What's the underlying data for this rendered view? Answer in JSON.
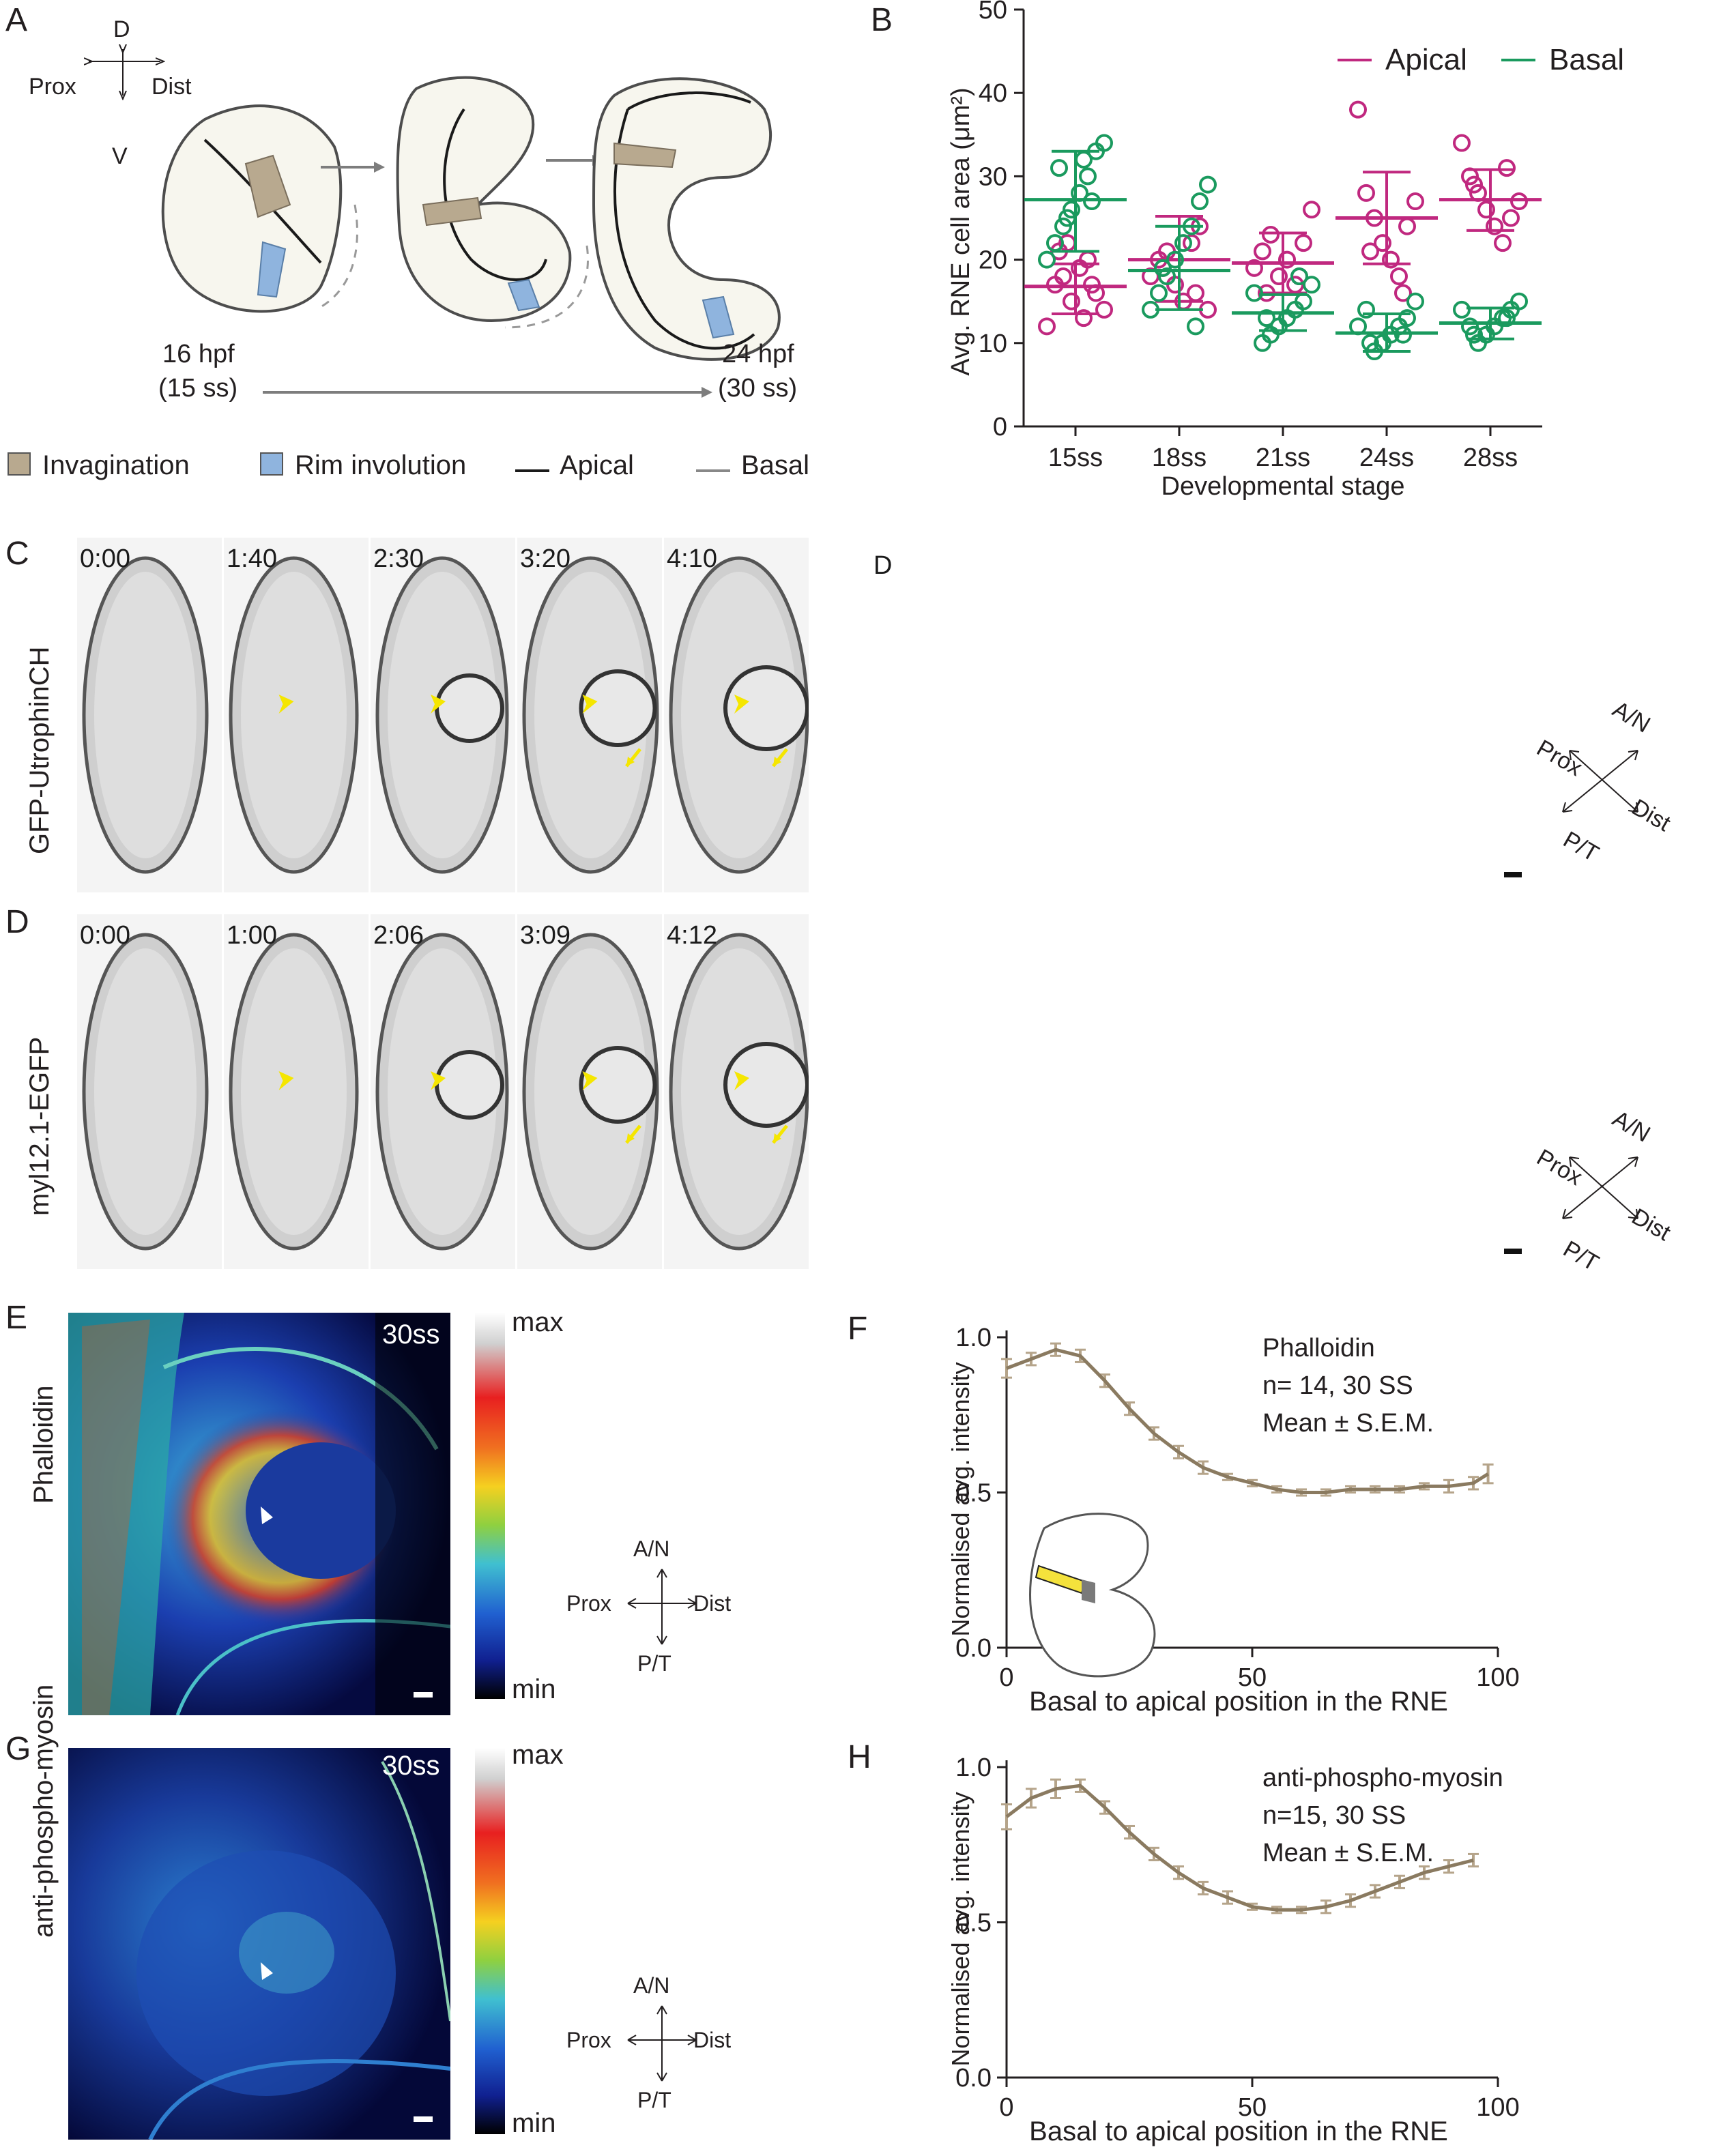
{
  "panel_letters": {
    "a": "A",
    "b": "B",
    "c": "C",
    "d": "D",
    "e": "E",
    "f": "F",
    "g": "G",
    "h": "H"
  },
  "panelA": {
    "axes": {
      "d": "D",
      "v": "V",
      "prox": "Prox",
      "dist": "Dist"
    },
    "stage_start": "16 hpf",
    "stage_start_ss": "(15 ss)",
    "stage_end": "24 hpf",
    "stage_end_ss": "(30 ss)",
    "legend": {
      "invagination": "Invagination",
      "rim": "Rim involution",
      "apical": "Apical",
      "basal": "Basal"
    },
    "colors": {
      "invagination": "#b8a98f",
      "rim": "#8fb4de",
      "apical": "#1a1a1a",
      "basal": "#888888",
      "eye_fill": "#f7f6ee"
    }
  },
  "panelC": {
    "row_label": "GFP-UtrophinCH",
    "timestamps": [
      "0:00",
      "1:40",
      "2:30",
      "3:20",
      "4:10"
    ],
    "d_marker": "D",
    "compass": {
      "an": "A/N",
      "prox": "Prox",
      "dist": "Dist",
      "pt": "P/T"
    }
  },
  "panelD": {
    "row_label": "myl12.1-EGFP",
    "timestamps": [
      "0:00",
      "1:00",
      "2:06",
      "3:09",
      "4:12"
    ],
    "compass": {
      "an": "A/N",
      "prox": "Prox",
      "dist": "Dist",
      "pt": "P/T"
    }
  },
  "panelE": {
    "row_label": "Phalloidin",
    "stage": "30ss",
    "scale_max": "max",
    "scale_min": "min",
    "compass": {
      "an": "A/N",
      "prox": "Prox",
      "dist": "Dist",
      "pt": "P/T"
    }
  },
  "panelG": {
    "row_label": "anti-phospho-myosin",
    "stage": "30ss",
    "scale_max": "max",
    "scale_min": "min",
    "compass": {
      "an": "A/N",
      "prox": "Prox",
      "dist": "Dist",
      "pt": "P/T"
    }
  },
  "chart_data": [
    {
      "id": "B",
      "type": "scatter",
      "xlabel": "Developmental stage",
      "ylabel": "Avg. RNE cell area  (μm²)",
      "categories": [
        "15ss",
        "18ss",
        "21ss",
        "24ss",
        "28ss"
      ],
      "ylim": [
        0,
        50
      ],
      "yticks": [
        0,
        10,
        20,
        30,
        40,
        50
      ],
      "legend_position": "top-right",
      "series": [
        {
          "name": "Apical",
          "color": "#c0287f",
          "points": [
            [
              12,
              17,
              18,
              15,
              19,
              20,
              16,
              14,
              21,
              17,
              22,
              13
            ],
            [
              18,
              20,
              21,
              17,
              15,
              22,
              24,
              14,
              19,
              16
            ],
            [
              19,
              21,
              23,
              18,
              20,
              17,
              22,
              26,
              16,
              18
            ],
            [
              38,
              28,
              25,
              22,
              20,
              18,
              24,
              27,
              21,
              16
            ],
            [
              34,
              30,
              28,
              26,
              24,
              22,
              25,
              27,
              29,
              31
            ]
          ],
          "mean": [
            16.8,
            20.0,
            19.6,
            25.0,
            27.2
          ],
          "upper": [
            19.5,
            25.2,
            23.2,
            30.5,
            30.8
          ],
          "lower": [
            13.5,
            15.0,
            16.0,
            19.5,
            23.5
          ]
        },
        {
          "name": "Basal",
          "color": "#1a9a5e",
          "points": [
            [
              34,
              33,
              30,
              28,
              26,
              24,
              22,
              20,
              27,
              31,
              32,
              25
            ],
            [
              29,
              27,
              24,
              22,
              20,
              18,
              16,
              14,
              12,
              19
            ],
            [
              17,
              15,
              14,
              13,
              12,
              11,
              10,
              16,
              18,
              13
            ],
            [
              15,
              13,
              12,
              11,
              10,
              9,
              14,
              12,
              11,
              10
            ],
            [
              15,
              14,
              13,
              12,
              11,
              10,
              12,
              14,
              13,
              11
            ]
          ],
          "mean": [
            27.2,
            18.7,
            13.6,
            11.2,
            12.4
          ],
          "upper": [
            33.0,
            24.0,
            15.8,
            13.5,
            14.2
          ],
          "lower": [
            21.0,
            14.0,
            11.5,
            9.0,
            10.5
          ]
        }
      ]
    },
    {
      "id": "F",
      "type": "line",
      "xlabel": "Basal to apical position in the RNE",
      "ylabel": "Normalised avg.  intensity",
      "xlim": [
        0,
        100
      ],
      "ylim": [
        0.0,
        1.0
      ],
      "xticks": [
        0,
        50,
        100
      ],
      "yticks": [
        0.0,
        0.5,
        1.0
      ],
      "annotation": [
        "Phalloidin",
        "n= 14, 30 SS",
        "Mean ± S.E.M."
      ],
      "color": "#b5a48a",
      "x": [
        0,
        5,
        10,
        15,
        20,
        25,
        30,
        35,
        40,
        45,
        50,
        55,
        60,
        65,
        70,
        75,
        80,
        85,
        90,
        95,
        98
      ],
      "y": [
        0.9,
        0.93,
        0.96,
        0.94,
        0.86,
        0.77,
        0.69,
        0.63,
        0.58,
        0.55,
        0.53,
        0.51,
        0.5,
        0.5,
        0.51,
        0.51,
        0.51,
        0.52,
        0.52,
        0.53,
        0.56
      ],
      "sem": [
        0.03,
        0.02,
        0.02,
        0.02,
        0.02,
        0.02,
        0.02,
        0.02,
        0.02,
        0.01,
        0.01,
        0.01,
        0.01,
        0.01,
        0.01,
        0.01,
        0.01,
        0.01,
        0.02,
        0.02,
        0.03
      ]
    },
    {
      "id": "H",
      "type": "line",
      "xlabel": "Basal to apical position in the RNE",
      "ylabel": "Normalised avg.  intensity",
      "xlim": [
        0,
        100
      ],
      "ylim": [
        0.0,
        1.0
      ],
      "xticks": [
        0,
        50,
        100
      ],
      "yticks": [
        0.0,
        0.5,
        1.0
      ],
      "annotation": [
        "anti-phospho-myosin",
        "n=15, 30 SS",
        "Mean ± S.E.M."
      ],
      "color": "#b5a48a",
      "x": [
        0,
        5,
        10,
        15,
        20,
        25,
        30,
        35,
        40,
        45,
        50,
        55,
        60,
        65,
        70,
        75,
        80,
        85,
        90,
        95
      ],
      "y": [
        0.84,
        0.9,
        0.93,
        0.94,
        0.87,
        0.79,
        0.72,
        0.66,
        0.61,
        0.58,
        0.55,
        0.54,
        0.54,
        0.55,
        0.57,
        0.6,
        0.63,
        0.66,
        0.68,
        0.7
      ],
      "sem": [
        0.04,
        0.03,
        0.03,
        0.02,
        0.02,
        0.02,
        0.02,
        0.02,
        0.02,
        0.02,
        0.01,
        0.01,
        0.01,
        0.02,
        0.02,
        0.02,
        0.02,
        0.02,
        0.02,
        0.02
      ]
    }
  ]
}
